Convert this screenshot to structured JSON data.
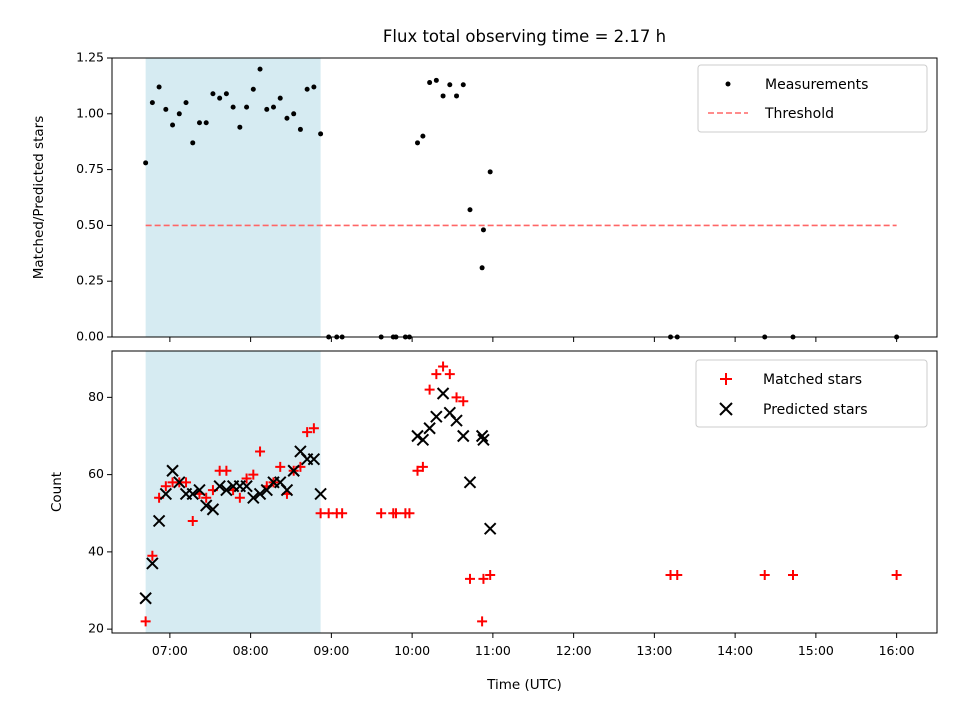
{
  "chart_data": [
    {
      "type": "scatter",
      "title": "Flux total observing time = 2.17 h",
      "xlabel": "",
      "ylabel": "Matched/Predicted stars",
      "ylim": [
        0,
        1.25
      ],
      "xlim": [
        "06:17",
        "16:30"
      ],
      "yticks": [
        "0.00",
        "0.25",
        "0.50",
        "0.75",
        "1.00",
        "1.25"
      ],
      "shaded_interval": [
        "06:42",
        "08:52"
      ],
      "shade_color": "#add8e6",
      "legend_position": "top-right",
      "legend": [
        "Measurements",
        "Threshold"
      ],
      "threshold": {
        "name": "Threshold",
        "value": 0.5,
        "x_range": [
          "06:42",
          "16:00"
        ],
        "color": "#ff6666",
        "style": "dashed"
      },
      "series": [
        {
          "name": "Measurements",
          "marker": "dot",
          "color": "#000000",
          "points": [
            [
              "06:42",
              0.78
            ],
            [
              "06:47",
              1.05
            ],
            [
              "06:52",
              1.12
            ],
            [
              "06:57",
              1.02
            ],
            [
              "07:02",
              0.95
            ],
            [
              "07:07",
              1.0
            ],
            [
              "07:12",
              1.05
            ],
            [
              "07:17",
              0.87
            ],
            [
              "07:22",
              0.96
            ],
            [
              "07:27",
              0.96
            ],
            [
              "07:32",
              1.09
            ],
            [
              "07:37",
              1.07
            ],
            [
              "07:42",
              1.09
            ],
            [
              "07:47",
              1.03
            ],
            [
              "07:52",
              0.94
            ],
            [
              "07:57",
              1.03
            ],
            [
              "08:02",
              1.11
            ],
            [
              "08:07",
              1.2
            ],
            [
              "08:12",
              1.02
            ],
            [
              "08:17",
              1.03
            ],
            [
              "08:22",
              1.07
            ],
            [
              "08:27",
              0.98
            ],
            [
              "08:32",
              1.0
            ],
            [
              "08:37",
              0.93
            ],
            [
              "08:42",
              1.11
            ],
            [
              "08:47",
              1.12
            ],
            [
              "08:52",
              0.91
            ],
            [
              "08:58",
              0.0
            ],
            [
              "09:04",
              0.0
            ],
            [
              "09:08",
              0.0
            ],
            [
              "09:37",
              0.0
            ],
            [
              "09:46",
              0.0
            ],
            [
              "09:48",
              0.0
            ],
            [
              "09:55",
              0.0
            ],
            [
              "09:58",
              0.0
            ],
            [
              "10:04",
              0.87
            ],
            [
              "10:08",
              0.9
            ],
            [
              "10:13",
              1.14
            ],
            [
              "10:18",
              1.15
            ],
            [
              "10:23",
              1.08
            ],
            [
              "10:28",
              1.13
            ],
            [
              "10:33",
              1.08
            ],
            [
              "10:38",
              1.13
            ],
            [
              "10:43",
              0.57
            ],
            [
              "10:52",
              0.31
            ],
            [
              "10:53",
              0.48
            ],
            [
              "10:58",
              0.74
            ],
            [
              "13:12",
              0.0
            ],
            [
              "13:17",
              0.0
            ],
            [
              "14:22",
              0.0
            ],
            [
              "14:43",
              0.0
            ],
            [
              "16:00",
              0.0
            ]
          ]
        }
      ]
    },
    {
      "type": "scatter",
      "title": "",
      "xlabel": "Time (UTC)",
      "ylabel": "Count",
      "ylim": [
        19,
        92
      ],
      "xlim": [
        "06:17",
        "16:30"
      ],
      "xticks": [
        "07:00",
        "08:00",
        "09:00",
        "10:00",
        "11:00",
        "12:00",
        "13:00",
        "14:00",
        "15:00",
        "16:00"
      ],
      "yticks": [
        "20",
        "40",
        "60",
        "80"
      ],
      "shaded_interval": [
        "06:42",
        "08:52"
      ],
      "shade_color": "#add8e6",
      "legend_position": "top-right",
      "legend": [
        "Matched stars",
        "Predicted stars"
      ],
      "series": [
        {
          "name": "Matched stars",
          "marker": "plus",
          "color": "#ff0000",
          "points": [
            [
              "06:42",
              22
            ],
            [
              "06:47",
              39
            ],
            [
              "06:52",
              54
            ],
            [
              "06:57",
              57
            ],
            [
              "07:02",
              58
            ],
            [
              "07:07",
              58
            ],
            [
              "07:12",
              58
            ],
            [
              "07:17",
              48
            ],
            [
              "07:22",
              55
            ],
            [
              "07:27",
              54
            ],
            [
              "07:32",
              56
            ],
            [
              "07:37",
              61
            ],
            [
              "07:42",
              61
            ],
            [
              "07:47",
              56
            ],
            [
              "07:52",
              54
            ],
            [
              "07:57",
              59
            ],
            [
              "08:02",
              60
            ],
            [
              "08:07",
              66
            ],
            [
              "08:12",
              57
            ],
            [
              "08:17",
              58
            ],
            [
              "08:22",
              62
            ],
            [
              "08:27",
              55
            ],
            [
              "08:32",
              61
            ],
            [
              "08:37",
              62
            ],
            [
              "08:42",
              71
            ],
            [
              "08:47",
              72
            ],
            [
              "08:52",
              50
            ],
            [
              "08:58",
              50
            ],
            [
              "09:04",
              50
            ],
            [
              "09:08",
              50
            ],
            [
              "09:37",
              50
            ],
            [
              "09:46",
              50
            ],
            [
              "09:48",
              50
            ],
            [
              "09:55",
              50
            ],
            [
              "09:58",
              50
            ],
            [
              "10:04",
              61
            ],
            [
              "10:08",
              62
            ],
            [
              "10:13",
              82
            ],
            [
              "10:18",
              86
            ],
            [
              "10:23",
              88
            ],
            [
              "10:28",
              86
            ],
            [
              "10:33",
              80
            ],
            [
              "10:38",
              79
            ],
            [
              "10:43",
              33
            ],
            [
              "10:52",
              22
            ],
            [
              "10:53",
              33
            ],
            [
              "10:58",
              34
            ],
            [
              "13:12",
              34
            ],
            [
              "13:17",
              34
            ],
            [
              "14:22",
              34
            ],
            [
              "14:43",
              34
            ],
            [
              "16:00",
              34
            ]
          ]
        },
        {
          "name": "Predicted stars",
          "marker": "x",
          "color": "#000000",
          "points": [
            [
              "06:42",
              28
            ],
            [
              "06:47",
              37
            ],
            [
              "06:52",
              48
            ],
            [
              "06:57",
              55
            ],
            [
              "07:02",
              61
            ],
            [
              "07:07",
              58
            ],
            [
              "07:12",
              55
            ],
            [
              "07:17",
              55
            ],
            [
              "07:22",
              56
            ],
            [
              "07:27",
              52
            ],
            [
              "07:32",
              51
            ],
            [
              "07:37",
              57
            ],
            [
              "07:42",
              56
            ],
            [
              "07:47",
              57
            ],
            [
              "07:52",
              57
            ],
            [
              "07:57",
              57
            ],
            [
              "08:02",
              54
            ],
            [
              "08:07",
              55
            ],
            [
              "08:12",
              56
            ],
            [
              "08:17",
              58
            ],
            [
              "08:22",
              58
            ],
            [
              "08:27",
              56
            ],
            [
              "08:32",
              61
            ],
            [
              "08:37",
              66
            ],
            [
              "08:42",
              64
            ],
            [
              "08:47",
              64
            ],
            [
              "08:52",
              55
            ],
            [
              "10:04",
              70
            ],
            [
              "10:08",
              69
            ],
            [
              "10:13",
              72
            ],
            [
              "10:18",
              75
            ],
            [
              "10:23",
              81
            ],
            [
              "10:28",
              76
            ],
            [
              "10:33",
              74
            ],
            [
              "10:38",
              70
            ],
            [
              "10:43",
              58
            ],
            [
              "10:52",
              70
            ],
            [
              "10:53",
              69
            ],
            [
              "10:58",
              46
            ]
          ]
        }
      ]
    }
  ]
}
